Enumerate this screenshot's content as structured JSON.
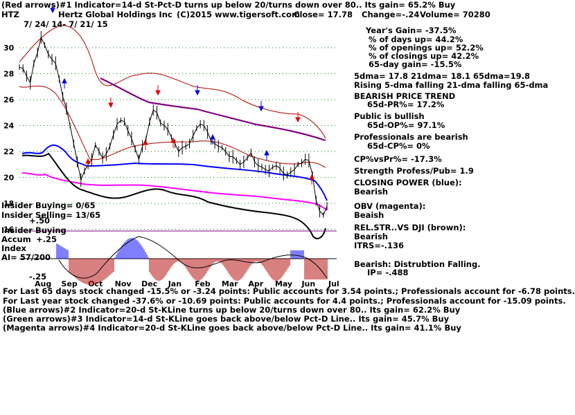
{
  "header": {
    "line1": "(Red arrows)#1 Indicator=14-d St-Pct-D turns up below 20/turns down over 80.. Its gain= 65.2% Buy",
    "ticker": "HTZ",
    "company": "Hertz Global Holdings Inc",
    "copyright": "(C)2015 www.tigersoft.com",
    "close": "Close=  17.78",
    "change": "Change=-.24",
    "volume": "Volume= 70280",
    "daterange": "7/ 24/ 14-  7/ 21/ 15"
  },
  "stats": {
    "years_gain": "Year's Gain= -37.5%",
    "days_up": "% of days up= 44.2%",
    "openings_up": "% of openings up= 52.2%",
    "closings_up": "% of closings up= 42.2%",
    "gain65": "65-day gain= -15.5%",
    "dma": "5dma= 17.8 21dma= 18.1 65dma=19.8",
    "dma_trend": "Rising 5-dma falling 21-dma falling 65-dma",
    "trend_title": "BEARISH PRICE TREND",
    "trend_pr": "65d-PR%= 17.2%",
    "public_title": "Public is bullish",
    "public_op": "65d-OP%= 97.1%",
    "pros_title": "Professionals are bearish",
    "pros_cp": "65d-CP%= 0%",
    "cpvspr": "CP%vsPr%= -17.3%",
    "strength": "Strength Profess/Pub= 1.9",
    "cp_title": "CLOSING POWER (blue):",
    "cp_value": "Bearish",
    "obv_title": "OBV (magenta):",
    "obv_value": "Beaish",
    "relstr_title": "REL.STR..VS DJI (brown):",
    "relstr_value": "Bearish",
    "itrs": "ITRS=-.136",
    "bearish_title": "Bearish: Distrubtion Falling.",
    "ip": "IP= -.488"
  },
  "left_labels": {
    "insider_buying": "Insider Buying= 0/65",
    "insider_selling": "Insider Selling= 13/65",
    "insider_buying2": "Insider Buying",
    "plus50": "+.50",
    "accum": "Accum",
    "plus25": "+.25",
    "index": "Index",
    "ai": "AI= 57/200",
    "minus25": "-.25"
  },
  "footer": {
    "line1": "For Last 65 days stock changed -15.5% or -3.24 points:  Public accounts for  3.54 points.;  Professionals account for -6.78 points.",
    "line2": "For Last year stock changed -37.6% or -10.69 points:  Public accounts for  4.4 points.;  Professionals account for -15.09 points.",
    "line3": "(Blue arrows)#2 Indicator=20-d St-KLine turns up below 20/turns down over 80.. Its gain= 62.2% Buy",
    "line4": "(Green arrows)#3 Indicator=14-d St-KLine goes back above/below Pct-D Line.. Its gain= 45.7% Buy",
    "line5": "(Magenta arrows)#4 Indicator=20-d St-KLine goes back above/below Pct-D Line.. Its gain= 41.1% Buy"
  },
  "colors": {
    "price": "#000000",
    "band": "#b00000",
    "ma65": "#800080",
    "closing_power": "#0000ff",
    "obv": "#ff00ff",
    "relstr": "#000000",
    "accum_pos": "#0000ff",
    "accum_neg": "#b00000",
    "grid": "#008000"
  },
  "chart_data": {
    "type": "line",
    "ylim": [
      15,
      32
    ],
    "y_ticks": [
      30,
      28,
      26,
      24,
      22,
      20,
      18,
      16
    ],
    "x_ticks": [
      "Aug",
      "Sep",
      "Oct",
      "Nov",
      "Dec",
      "Jan",
      "Feb",
      "Mar",
      "Apr",
      "May",
      "Jun",
      "Jul"
    ],
    "series": [
      {
        "values": [
          28.5,
          28.4,
          27.8,
          27.3,
          28.8,
          29.6,
          30.8,
          30.2,
          29.5,
          29.1,
          28.8,
          27.6,
          26.2,
          25.3,
          24.0,
          22.6,
          21.2,
          19.8,
          20.5,
          21.0,
          21.4,
          22.5,
          22.0,
          21.5,
          21.8,
          22.4,
          23.3,
          24.1,
          24.4,
          24.3,
          23.6,
          23.0,
          22.2,
          21.4,
          22.4,
          23.0,
          24.3,
          25.2,
          25.0,
          24.2,
          24.0,
          23.7,
          23.1,
          22.6,
          22.0,
          22.3,
          22.4,
          22.6,
          23.2,
          23.8,
          24.1,
          24.0,
          23.5,
          22.8,
          22.6,
          22.4,
          22.3,
          22.0,
          21.6,
          21.6,
          21.3,
          21.0,
          21.2,
          21.5,
          21.9,
          21.2,
          20.9,
          20.8,
          20.6,
          20.5,
          20.8,
          20.9,
          20.7,
          20.3,
          20.2,
          20.4,
          20.6,
          21.0,
          21.1,
          21.4,
          21.3,
          20.2,
          18.2,
          17.4,
          17.1,
          17.78
        ]
      }
    ]
  }
}
